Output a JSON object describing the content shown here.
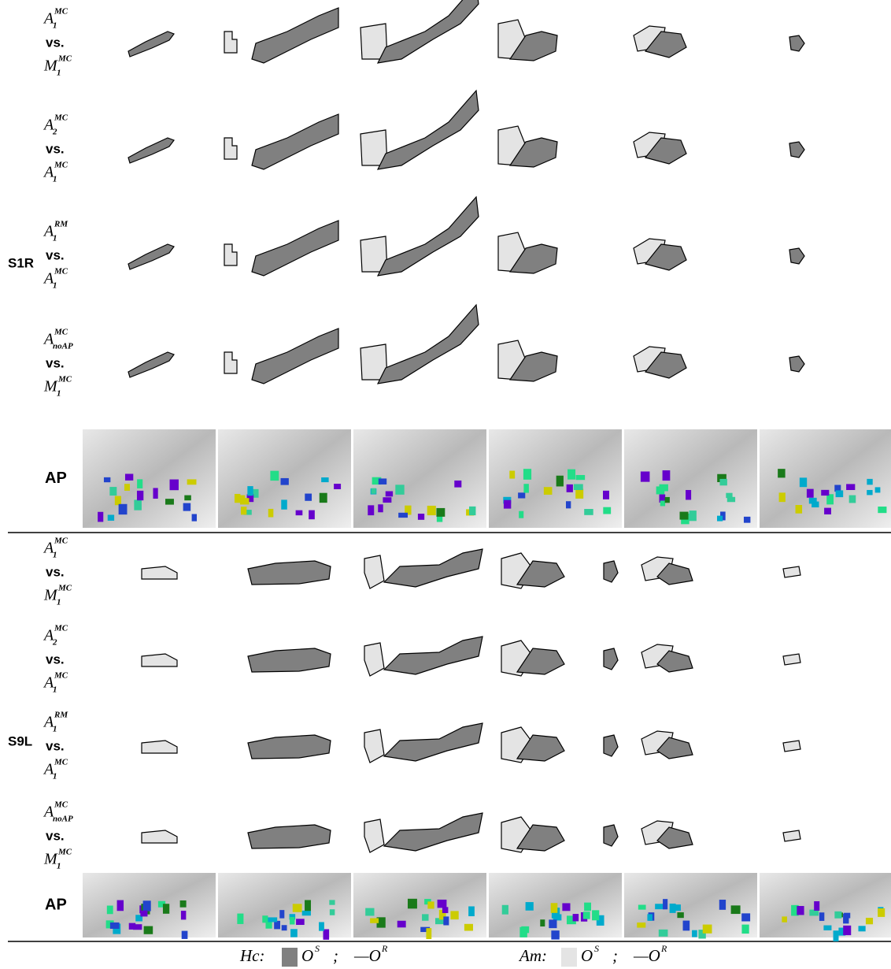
{
  "groups": [
    {
      "name": "S1R",
      "ap": "AP",
      "rows": [
        {
          "top": {
            "base": "A",
            "sub": "1",
            "sup": "MC"
          },
          "vs": "vs.",
          "bottom": {
            "base": "M",
            "sub": "1",
            "sup": "MC"
          }
        },
        {
          "top": {
            "base": "A",
            "sub": "2",
            "sup": "MC"
          },
          "vs": "vs.",
          "bottom": {
            "base": "A",
            "sub": "1",
            "sup": "MC"
          }
        },
        {
          "top": {
            "base": "A",
            "sub": "1",
            "sup": "RM"
          },
          "vs": "vs.",
          "bottom": {
            "base": "A",
            "sub": "1",
            "sup": "MC"
          }
        },
        {
          "top": {
            "base": "A",
            "sub": "noAP",
            "sup": "MC"
          },
          "vs": "vs.",
          "bottom": {
            "base": "M",
            "sub": "1",
            "sup": "MC"
          }
        }
      ]
    },
    {
      "name": "S9L",
      "ap": "AP",
      "rows": [
        {
          "top": {
            "base": "A",
            "sub": "1",
            "sup": "MC"
          },
          "vs": "vs.",
          "bottom": {
            "base": "M",
            "sub": "1",
            "sup": "MC"
          }
        },
        {
          "top": {
            "base": "A",
            "sub": "2",
            "sup": "MC"
          },
          "vs": "vs.",
          "bottom": {
            "base": "A",
            "sub": "1",
            "sup": "MC"
          }
        },
        {
          "top": {
            "base": "A",
            "sub": "1",
            "sup": "RM"
          },
          "vs": "vs.",
          "bottom": {
            "base": "A",
            "sub": "1",
            "sup": "MC"
          }
        },
        {
          "top": {
            "base": "A",
            "sub": "noAP",
            "sup": "MC"
          },
          "vs": "vs.",
          "bottom": {
            "base": "M",
            "sub": "1",
            "sup": "MC"
          }
        }
      ]
    }
  ],
  "legend": [
    {
      "label": "Hc:",
      "observed": {
        "base": "O",
        "sup": "S"
      },
      "separator": ";",
      "reference": {
        "base": "—O",
        "sup": "R"
      }
    },
    {
      "label": "Am:",
      "observed": {
        "base": "O",
        "sup": "S"
      },
      "separator": ";",
      "reference": {
        "base": "—O",
        "sup": "R"
      }
    }
  ]
}
